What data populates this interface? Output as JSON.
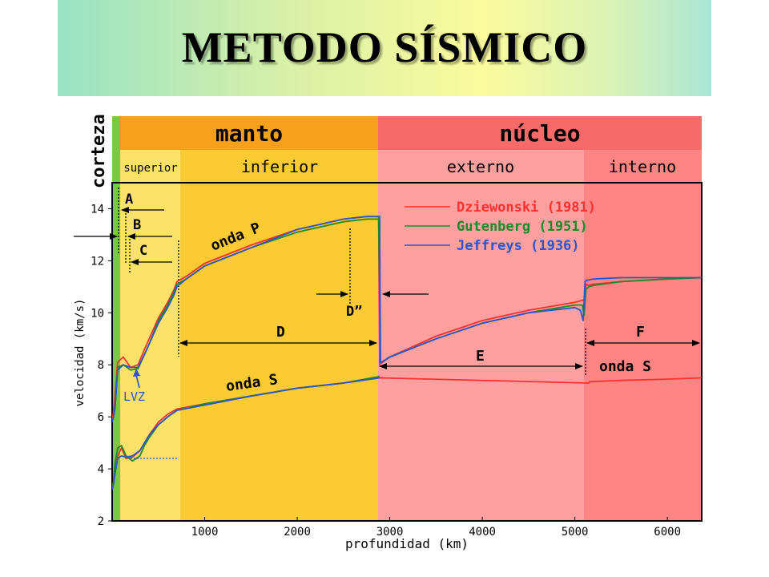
{
  "title": "METODO SÍSMICO",
  "colors": {
    "crust": "#7ac943",
    "mantle_header": "#f7a01c",
    "core_header": "#f76a6a",
    "upper_mantle": "#fde26a",
    "lower_mantle": "#fcca33",
    "outer_core": "#ffa0a0",
    "inner_core": "#ff8484",
    "dziewonski": "#ff3030",
    "gutenberg": "#1a8a2a",
    "jeffreys": "#2e56c8"
  },
  "chart_data": {
    "type": "line",
    "xlabel": "profundidad (km)",
    "ylabel": "velocidad (km/s)",
    "xlim": [
      0,
      6371
    ],
    "ylim": [
      2,
      15
    ],
    "xticks": [
      1000,
      2000,
      3000,
      4000,
      5000,
      6000
    ],
    "yticks": [
      2,
      4,
      6,
      8,
      10,
      12,
      14
    ],
    "layers": {
      "crust_label": "corteza",
      "mantle": "manto",
      "core": "núcleo",
      "upper": "superior",
      "lower": "inferior",
      "outer": "externo",
      "inner": "interno"
    },
    "legend": [
      {
        "name": "Dziewonski (1981)",
        "color": "#ff3030"
      },
      {
        "name": "Gutenberg (1951)",
        "color": "#1a8a2a"
      },
      {
        "name": "Jeffreys (1936)",
        "color": "#2e56c8"
      }
    ],
    "wave_labels": {
      "p": "onda P",
      "s": "onda S",
      "s_inner": "onda S"
    },
    "annotations": {
      "A": "A",
      "B": "B",
      "C": "C",
      "D": "D",
      "D2": "D”",
      "E": "E",
      "F": "F",
      "lvz": "LVZ"
    },
    "series": [
      {
        "name": "Dziewonski (1981) onda P",
        "color": "#ff3030",
        "x": [
          0,
          15,
          30,
          60,
          120,
          200,
          280,
          350,
          400,
          500,
          600,
          670,
          700,
          800,
          1000,
          1500,
          2000,
          2500,
          2750,
          2880,
          2891,
          2900,
          3000,
          3500,
          4000,
          4500,
          5000,
          5100,
          5120,
          5150,
          5200,
          5500,
          6000,
          6371
        ],
        "y": [
          5.8,
          6.2,
          6.8,
          8.1,
          8.3,
          7.9,
          8.0,
          8.6,
          9.0,
          9.8,
          10.4,
          10.9,
          11.2,
          11.4,
          11.9,
          12.6,
          13.2,
          13.6,
          13.7,
          13.7,
          8.0,
          8.05,
          8.3,
          9.1,
          9.7,
          10.1,
          10.4,
          10.5,
          11.1,
          11.05,
          11.1,
          11.2,
          11.3,
          11.35
        ]
      },
      {
        "name": "Gutenberg (1951) onda P",
        "color": "#1a8a2a",
        "x": [
          0,
          15,
          30,
          60,
          120,
          200,
          280,
          350,
          400,
          500,
          600,
          670,
          700,
          800,
          1000,
          1500,
          2000,
          2500,
          2750,
          2880,
          2900,
          2910,
          3000,
          3500,
          4000,
          4500,
          5000,
          5080,
          5100,
          5120,
          5150,
          5200,
          5500,
          6000,
          6371
        ],
        "y": [
          5.8,
          6.0,
          6.4,
          7.9,
          8.0,
          7.8,
          7.85,
          8.4,
          8.8,
          9.7,
          10.3,
          10.8,
          11.1,
          11.3,
          11.8,
          12.5,
          13.1,
          13.5,
          13.6,
          13.6,
          8.1,
          8.1,
          8.3,
          9.0,
          9.6,
          10.0,
          10.3,
          10.3,
          9.9,
          10.9,
          11.0,
          11.05,
          11.2,
          11.3,
          11.35
        ]
      },
      {
        "name": "Jeffreys (1936) onda P",
        "color": "#2e56c8",
        "x": [
          0,
          15,
          30,
          60,
          120,
          200,
          280,
          350,
          400,
          500,
          600,
          670,
          700,
          800,
          1000,
          1500,
          2000,
          2500,
          2750,
          2890,
          2900,
          2910,
          3000,
          3500,
          4000,
          4500,
          5000,
          5060,
          5090,
          5110,
          5130,
          5200,
          5500,
          6000,
          6371
        ],
        "y": [
          5.8,
          6.0,
          6.3,
          7.8,
          8.0,
          7.9,
          7.9,
          8.4,
          8.8,
          9.6,
          10.2,
          10.7,
          11.0,
          11.3,
          11.8,
          12.5,
          13.2,
          13.6,
          13.7,
          13.7,
          8.1,
          8.1,
          8.3,
          9.0,
          9.6,
          10.0,
          10.2,
          10.1,
          9.7,
          11.2,
          11.25,
          11.3,
          11.35,
          11.35,
          11.35
        ]
      },
      {
        "name": "Dziewonski (1981) onda S",
        "color": "#ff3030",
        "x": [
          0,
          15,
          30,
          60,
          100,
          150,
          220,
          300,
          350,
          400,
          500,
          600,
          700,
          1000,
          1500,
          2000,
          2500,
          2891,
          5150,
          5160,
          5500,
          6000,
          6371
        ],
        "y": [
          3.2,
          3.5,
          3.9,
          4.5,
          4.8,
          4.4,
          4.45,
          4.7,
          5.0,
          5.3,
          5.8,
          6.1,
          6.3,
          6.5,
          6.8,
          7.1,
          7.3,
          7.5,
          7.3,
          7.35,
          7.4,
          7.45,
          7.5
        ]
      },
      {
        "name": "Gutenberg (1951) onda S",
        "color": "#1a8a2a",
        "x": [
          0,
          15,
          30,
          60,
          100,
          150,
          220,
          300,
          350,
          400,
          500,
          600,
          700,
          1000,
          1500,
          2000,
          2500,
          2891
        ],
        "y": [
          3.2,
          3.5,
          4.2,
          4.8,
          4.9,
          4.5,
          4.3,
          4.5,
          4.9,
          5.2,
          5.7,
          6.0,
          6.25,
          6.5,
          6.8,
          7.1,
          7.3,
          7.55
        ]
      },
      {
        "name": "Jeffreys (1936) onda S",
        "color": "#2e56c8",
        "x": [
          0,
          15,
          30,
          60,
          100,
          150,
          220,
          300,
          350,
          400,
          500,
          600,
          700,
          1000,
          1500,
          2000,
          2500,
          2891
        ],
        "y": [
          3.2,
          3.4,
          3.8,
          4.4,
          4.5,
          4.45,
          4.5,
          4.7,
          5.0,
          5.3,
          5.7,
          6.0,
          6.25,
          6.45,
          6.8,
          7.1,
          7.3,
          7.5
        ]
      }
    ]
  }
}
